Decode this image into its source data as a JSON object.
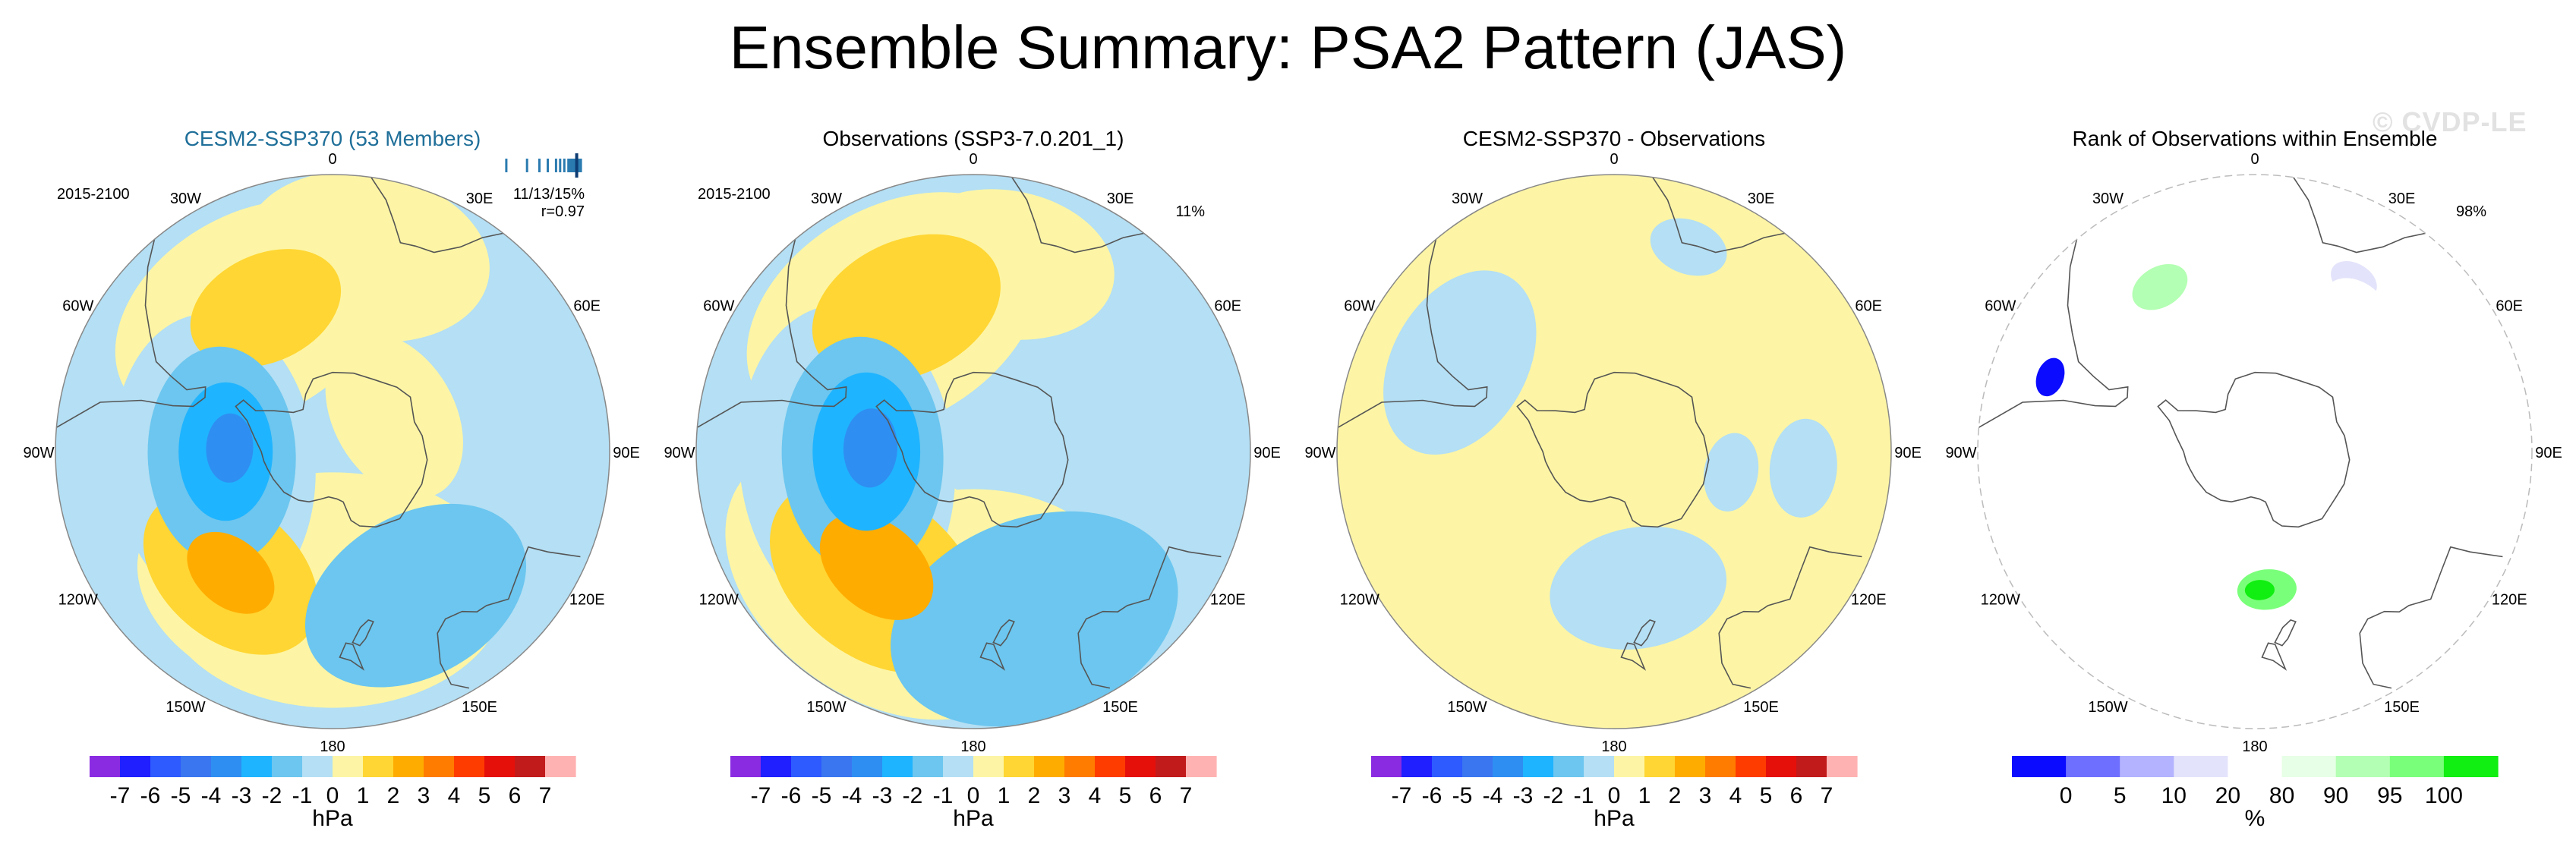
{
  "title": "Ensemble Summary: PSA2 Pattern (JAS)",
  "watermark": "© CVDP-LE",
  "chart_data": [
    {
      "type": "heatmap",
      "projection": "south-polar-stereographic",
      "title": "CESM2-SSP370 (53 Members)",
      "title_color": "#1f6f99",
      "period": "2015-2100",
      "stat_text": "11/13/15%",
      "r_text": "r=0.97",
      "ensemble_spread_bars": [
        0.8,
        0.85,
        0.88,
        0.9,
        0.92,
        0.93,
        0.94,
        0.95,
        0.955,
        0.96,
        0.965,
        0.97,
        0.975,
        0.98
      ],
      "ensemble_value_marker": 0.97,
      "lon_labels": [
        "0",
        "30E",
        "60E",
        "90E",
        "120E",
        "150E",
        "180",
        "150W",
        "120W",
        "90W",
        "60W",
        "30W"
      ],
      "field": "sea level pressure anomaly (PSA2 regression)",
      "colorbar": "anomaly",
      "features": [
        {
          "name": "positive",
          "value": 1,
          "lon": 180,
          "lat": -55,
          "spread": 35
        },
        {
          "name": "positive",
          "value": 1,
          "lon": 200,
          "lat": -52,
          "spread": 30
        },
        {
          "name": "positive",
          "value": 1,
          "lon": 330,
          "lat": -50,
          "spread": 30
        },
        {
          "name": "positive",
          "value": 1,
          "lon": 10,
          "lat": -40,
          "spread": 25
        },
        {
          "name": "positive",
          "value": 1,
          "lon": 60,
          "lat": -72,
          "spread": 18
        },
        {
          "name": "positive",
          "value": 2,
          "lon": 335,
          "lat": -50,
          "spread": 16
        },
        {
          "name": "positive",
          "value": 2,
          "lon": 220,
          "lat": -50,
          "spread": 20
        },
        {
          "name": "positive",
          "value": 3,
          "lon": 220,
          "lat": -50,
          "spread": 10
        },
        {
          "name": "negative",
          "value": -1,
          "lon": 265,
          "lat": -60,
          "spread": 30
        },
        {
          "name": "negative",
          "value": -2,
          "lon": 268,
          "lat": -62,
          "spread": 22
        },
        {
          "name": "negative",
          "value": -3,
          "lon": 270,
          "lat": -63,
          "spread": 14
        },
        {
          "name": "negative",
          "value": -4,
          "lon": 272,
          "lat": -64,
          "spread": 7
        },
        {
          "name": "negative",
          "value": -2,
          "lon": 150,
          "lat": -48,
          "spread": 24
        }
      ]
    },
    {
      "type": "heatmap",
      "projection": "south-polar-stereographic",
      "title": "Observations (SSP3-7.0.201_1)",
      "period": "2015-2100",
      "pct_text": "11%",
      "lon_labels": [
        "0",
        "30E",
        "60E",
        "90E",
        "120E",
        "150E",
        "180",
        "150W",
        "120W",
        "90W",
        "60W",
        "30W"
      ],
      "field": "sea level pressure anomaly (PSA2 regression)",
      "colorbar": "anomaly",
      "features": [
        {
          "name": "positive",
          "value": 1,
          "lon": 180,
          "lat": -55,
          "spread": 30
        },
        {
          "name": "positive",
          "value": 1,
          "lon": 215,
          "lat": -50,
          "spread": 35
        },
        {
          "name": "positive",
          "value": 1,
          "lon": 330,
          "lat": -50,
          "spread": 32
        },
        {
          "name": "positive",
          "value": 1,
          "lon": 10,
          "lat": -42,
          "spread": 22
        },
        {
          "name": "positive",
          "value": 2,
          "lon": 335,
          "lat": -50,
          "spread": 20
        },
        {
          "name": "positive",
          "value": 2,
          "lon": 218,
          "lat": -50,
          "spread": 24
        },
        {
          "name": "positive",
          "value": 3,
          "lon": 220,
          "lat": -52,
          "spread": 13
        },
        {
          "name": "negative",
          "value": -1,
          "lon": 265,
          "lat": -58,
          "spread": 32
        },
        {
          "name": "negative",
          "value": -2,
          "lon": 268,
          "lat": -62,
          "spread": 24
        },
        {
          "name": "negative",
          "value": -3,
          "lon": 270,
          "lat": -63,
          "spread": 16
        },
        {
          "name": "negative",
          "value": -4,
          "lon": 272,
          "lat": -64,
          "spread": 8
        },
        {
          "name": "negative",
          "value": -2,
          "lon": 160,
          "lat": -45,
          "spread": 30
        }
      ]
    },
    {
      "type": "heatmap",
      "projection": "south-polar-stereographic",
      "title": "CESM2-SSP370 - Observations",
      "lon_labels": [
        "0",
        "30E",
        "60E",
        "90E",
        "120E",
        "150E",
        "180",
        "150W",
        "120W",
        "90W",
        "60W",
        "30W"
      ],
      "field": "difference",
      "colorbar": "anomaly",
      "features": [
        {
          "name": "positive",
          "value": 1,
          "lon": 0,
          "lat": -90,
          "spread": 999
        },
        {
          "name": "negative",
          "value": -1,
          "lon": 300,
          "lat": -45,
          "spread": 20
        },
        {
          "name": "negative",
          "value": -1,
          "lon": 100,
          "lat": -60,
          "spread": 8
        },
        {
          "name": "negative",
          "value": -1,
          "lon": 170,
          "lat": -55,
          "spread": 18
        },
        {
          "name": "negative",
          "value": -1,
          "lon": 20,
          "lat": -35,
          "spread": 8
        },
        {
          "name": "negative",
          "value": -1,
          "lon": 95,
          "lat": -42,
          "spread": 10
        }
      ]
    },
    {
      "type": "heatmap",
      "projection": "south-polar-stereographic",
      "title": "Rank of Observations within Ensemble",
      "pct_text": "98%",
      "lon_labels": [
        "0",
        "30E",
        "60E",
        "90E",
        "120E",
        "150E",
        "180",
        "150W",
        "120W",
        "90W",
        "60W",
        "30W"
      ],
      "field": "rank of observations (%)",
      "colorbar": "rank",
      "features": [
        {
          "name": "low-rank",
          "value": 0,
          "lon": 290,
          "lat": -35,
          "spread": 4
        },
        {
          "name": "low-rank",
          "value": 10,
          "lon": 30,
          "lat": -40,
          "spread": 5
        },
        {
          "name": "low-rank",
          "value": 20,
          "lon": 35,
          "lat": -45,
          "spread": 7
        },
        {
          "name": "low-rank",
          "value": 20,
          "lon": 270,
          "lat": -65,
          "spread": 6
        },
        {
          "name": "low-rank",
          "value": 20,
          "lon": 220,
          "lat": -45,
          "spread": 6
        },
        {
          "name": "low-rank",
          "value": 20,
          "lon": 250,
          "lat": -42,
          "spread": 5
        },
        {
          "name": "low-rank",
          "value": 20,
          "lon": 110,
          "lat": -55,
          "spread": 4
        },
        {
          "name": "high-rank",
          "value": 90,
          "lon": 330,
          "lat": -42,
          "spread": 6
        },
        {
          "name": "high-rank",
          "value": 95,
          "lon": 175,
          "lat": -55,
          "spread": 6
        },
        {
          "name": "high-rank",
          "value": 100,
          "lon": 178,
          "lat": -55,
          "spread": 3
        }
      ]
    }
  ],
  "colorbars": {
    "anomaly": {
      "unit": "hPa",
      "tick_labels": [
        "-7",
        "-6",
        "-5",
        "-4",
        "-3",
        "-2",
        "-1",
        "0",
        "1",
        "2",
        "3",
        "4",
        "5",
        "6",
        "7"
      ],
      "levels": [
        -7,
        -6,
        -5,
        -4,
        -3,
        -2,
        -1,
        0,
        1,
        2,
        3,
        4,
        5,
        6,
        7
      ],
      "colors": [
        "#8a2be2",
        "#1f1fff",
        "#2d5bff",
        "#3a76f0",
        "#2f8ef2",
        "#1fb4ff",
        "#6cc6ef",
        "#b4dff4",
        "#fdf5a5",
        "#ffd633",
        "#ffac00",
        "#ff7c00",
        "#ff3c00",
        "#e6100b",
        "#c21b1b",
        "#ffb2b2"
      ]
    },
    "rank": {
      "unit": "%",
      "tick_labels": [
        "0",
        "5",
        "10",
        "20",
        "80",
        "90",
        "95",
        "100"
      ],
      "levels": [
        0,
        5,
        10,
        20,
        80,
        90,
        95,
        100
      ],
      "colors": [
        "#0b0bff",
        "#6f6fff",
        "#b3b3ff",
        "#e3e3fb",
        "#ffffff",
        "#e6ffe6",
        "#b3ffb3",
        "#7aff7a",
        "#11ee11"
      ]
    }
  }
}
